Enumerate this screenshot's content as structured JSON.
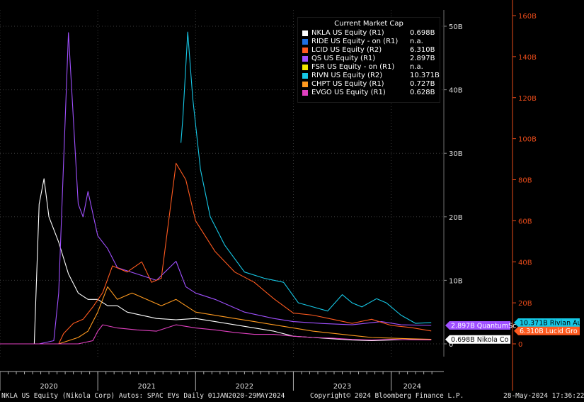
{
  "chart_data": {
    "type": "line",
    "title": "",
    "x_tick_labels": [
      "2020",
      "2021",
      "2022",
      "2023",
      "2024"
    ],
    "y_left_tick_labels": [
      "0",
      "10B",
      "20B",
      "30B",
      "40B",
      "50B"
    ],
    "y_right_tick_labels": [
      "0",
      "20B",
      "40B",
      "60B",
      "80B",
      "100B",
      "120B",
      "140B",
      "160B"
    ],
    "ylim_left": [
      0,
      50
    ],
    "ylim_right": [
      0,
      160
    ],
    "legend": {
      "title": "Current Market Cap",
      "placement": "top-right",
      "entries": [
        {
          "name": "NKLA US Equity  (R1)",
          "value": "0.698B",
          "color": "#ffffff"
        },
        {
          "name": "RIDE US Equity -  on  (R1)",
          "value": "n.a.",
          "color": "#1f6fe0"
        },
        {
          "name": "LCID US Equity  (R2)",
          "value": "6.310B",
          "color": "#ff5a1f"
        },
        {
          "name": "QS US Equity  (R1)",
          "value": "2.897B",
          "color": "#a050ff"
        },
        {
          "name": "FSR US Equity -  on  (R1)",
          "value": "n.a.",
          "color": "#f2e600"
        },
        {
          "name": "RIVN US Equity  (R2)",
          "value": "10.371B",
          "color": "#16c8e6"
        },
        {
          "name": "CHPT US Equity  (R1)",
          "value": "0.727B",
          "color": "#ff9a1f"
        },
        {
          "name": "EVGO US Equity  (R1)",
          "value": "0.628B",
          "color": "#e040c0"
        }
      ]
    },
    "end_labels": [
      {
        "text": "10.371B Rivian Au",
        "color": "#16c8e6",
        "axis": "right",
        "value": 10.371
      },
      {
        "text": "6.310B  Lucid Gro",
        "color": "#ff5a1f",
        "axis": "right",
        "value": 6.31
      },
      {
        "text": "2.897B QuantumSc",
        "color": "#a050ff",
        "axis": "left",
        "value": 2.897
      },
      {
        "text": "0.698B Nikola Co",
        "color": "#ffffff",
        "axis": "left",
        "value": 0.698
      }
    ],
    "series": [
      {
        "name": "NKLA US Equity  (R1)",
        "axis": "left",
        "color": "#ffffff",
        "x": [
          2020.0,
          2020.35,
          2020.4,
          2020.45,
          2020.5,
          2020.6,
          2020.7,
          2020.8,
          2020.9,
          2021.0,
          2021.1,
          2021.2,
          2021.3,
          2021.45,
          2021.6,
          2021.8,
          2022.0,
          2022.2,
          2022.4,
          2022.6,
          2022.8,
          2023.0,
          2023.2,
          2023.4,
          2023.6,
          2023.8,
          2024.0,
          2024.2,
          2024.41
        ],
        "y": [
          0,
          0,
          22,
          26,
          20,
          16,
          11,
          8,
          7,
          7,
          6,
          6,
          5,
          4.5,
          4,
          3.8,
          4,
          3.5,
          3,
          2.5,
          2,
          1.2,
          1,
          0.8,
          0.6,
          0.5,
          0.6,
          0.7,
          0.698
        ]
      },
      {
        "name": "QS US Equity  (R1)",
        "axis": "left",
        "color": "#a050ff",
        "x": [
          2020.0,
          2020.4,
          2020.55,
          2020.6,
          2020.7,
          2020.8,
          2020.85,
          2020.9,
          2021.0,
          2021.1,
          2021.2,
          2021.4,
          2021.6,
          2021.8,
          2021.9,
          2022.0,
          2022.2,
          2022.5,
          2022.8,
          2023.0,
          2023.3,
          2023.6,
          2023.9,
          2024.1,
          2024.41
        ],
        "y": [
          0,
          0,
          0.5,
          8,
          49,
          22,
          20,
          24,
          17,
          15,
          12,
          11,
          10,
          13,
          9,
          8,
          7,
          5,
          4,
          3.5,
          3.2,
          3,
          3.5,
          3,
          2.9
        ]
      },
      {
        "name": "RIVN US Equity  (R2)",
        "axis": "right",
        "color": "#16c8e6",
        "x": [
          2021.85,
          2021.87,
          2021.92,
          2021.97,
          2022.05,
          2022.15,
          2022.3,
          2022.5,
          2022.7,
          2022.9,
          2023.05,
          2023.2,
          2023.35,
          2023.5,
          2023.6,
          2023.7,
          2023.85,
          2023.95,
          2024.1,
          2024.25,
          2024.41
        ],
        "y": [
          98,
          110,
          152,
          120,
          85,
          62,
          48,
          35,
          32,
          30,
          20,
          18,
          16,
          24,
          20,
          18,
          22,
          20,
          14,
          10,
          10.4
        ]
      },
      {
        "name": "LCID US Equity  (R2)",
        "axis": "right",
        "color": "#ff5a1f",
        "x": [
          2020.0,
          2020.6,
          2020.65,
          2020.75,
          2020.85,
          2020.95,
          2021.05,
          2021.15,
          2021.3,
          2021.45,
          2021.55,
          2021.65,
          2021.8,
          2021.9,
          2022.0,
          2022.2,
          2022.4,
          2022.6,
          2022.8,
          2023.0,
          2023.2,
          2023.4,
          2023.6,
          2023.8,
          2024.0,
          2024.2,
          2024.41
        ],
        "y": [
          0,
          0,
          5,
          10,
          12,
          18,
          25,
          38,
          35,
          40,
          30,
          32,
          88,
          80,
          60,
          45,
          35,
          30,
          22,
          15,
          14,
          12,
          10,
          12,
          9,
          8,
          6.3
        ]
      },
      {
        "name": "CHPT US Equity  (R1)",
        "axis": "left",
        "color": "#ff9a1f",
        "x": [
          2020.0,
          2020.6,
          2020.7,
          2020.8,
          2020.9,
          2021.0,
          2021.1,
          2021.2,
          2021.35,
          2021.5,
          2021.65,
          2021.8,
          2022.0,
          2022.2,
          2022.4,
          2022.6,
          2022.8,
          2023.0,
          2023.2,
          2023.5,
          2023.8,
          2024.0,
          2024.2,
          2024.41
        ],
        "y": [
          0,
          0,
          0.5,
          1,
          2,
          5,
          9,
          7,
          8,
          7,
          6,
          7,
          5,
          4.5,
          4,
          3.5,
          3,
          2.5,
          2,
          1.5,
          1,
          0.9,
          0.8,
          0.73
        ]
      },
      {
        "name": "EVGO US Equity  (R1)",
        "axis": "left",
        "color": "#e040c0",
        "x": [
          2020.0,
          2020.8,
          2020.95,
          2021.0,
          2021.05,
          2021.2,
          2021.4,
          2021.6,
          2021.8,
          2022.0,
          2022.2,
          2022.4,
          2022.6,
          2022.8,
          2023.0,
          2023.2,
          2023.4,
          2023.6,
          2023.8,
          2024.0,
          2024.2,
          2024.41
        ],
        "y": [
          0,
          0,
          0.5,
          2,
          3,
          2.5,
          2.2,
          2,
          3,
          2.5,
          2.2,
          1.8,
          1.5,
          1.5,
          1.2,
          1,
          0.9,
          0.7,
          0.6,
          0.7,
          0.65,
          0.63
        ]
      }
    ]
  },
  "footer": {
    "left_text": "NKLA US Equity (Nikola Corp) Autos: SPAC EVs  Daily 01JAN2020-29MAY2024",
    "center_text": "Copyright© 2024 Bloomberg Finance L.P.",
    "right_text": "28-May-2024 17:36:22"
  }
}
